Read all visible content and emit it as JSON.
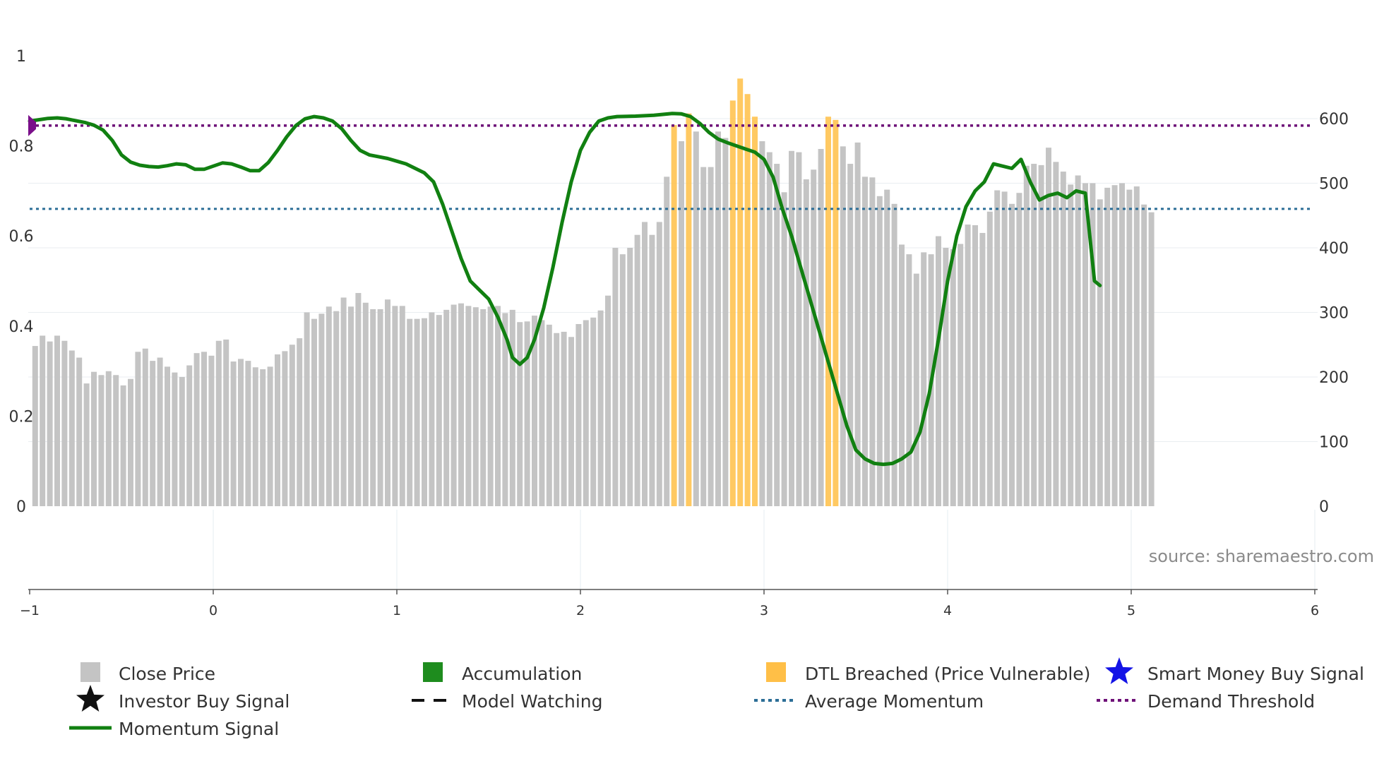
{
  "chart_data": {
    "type": "bar+line",
    "source_text": "source: sharemaestro.com",
    "left_axis": {
      "ylim": [
        0,
        1
      ],
      "ticks": [
        "0",
        "0.2",
        "0.4",
        "0.6",
        "0.8",
        "1"
      ]
    },
    "right_axis": {
      "ylim": [
        0,
        700
      ],
      "ticks": [
        "0",
        "100",
        "200",
        "300",
        "400",
        "500",
        "600"
      ]
    },
    "x_axis": {
      "xlim": [
        -1,
        6
      ],
      "ticks": [
        "−1",
        "0",
        "1",
        "2",
        "3",
        "4",
        "5",
        "6"
      ]
    },
    "reference_lines": {
      "demand_threshold": 0.845,
      "average_momentum": 0.66
    },
    "colors": {
      "close_price": "#c4c4c4",
      "dtl_breached": "#ffbf47",
      "momentum": "#118011",
      "demand_threshold": "#6e1178",
      "average_momentum": "#2c6e97",
      "accumulation": "#1e8c1e",
      "smart_money": "#1414e6",
      "marker": "#7a0f8a"
    },
    "bars": [
      {
        "x": -0.97,
        "v": 248
      },
      {
        "x": -0.93,
        "v": 264
      },
      {
        "x": -0.89,
        "v": 255
      },
      {
        "x": -0.85,
        "v": 264
      },
      {
        "x": -0.81,
        "v": 256
      },
      {
        "x": -0.77,
        "v": 241
      },
      {
        "x": -0.73,
        "v": 230
      },
      {
        "x": -0.69,
        "v": 190
      },
      {
        "x": -0.65,
        "v": 208
      },
      {
        "x": -0.61,
        "v": 203
      },
      {
        "x": -0.57,
        "v": 209
      },
      {
        "x": -0.53,
        "v": 203
      },
      {
        "x": -0.49,
        "v": 187
      },
      {
        "x": -0.45,
        "v": 197
      },
      {
        "x": -0.41,
        "v": 239
      },
      {
        "x": -0.37,
        "v": 244
      },
      {
        "x": -0.33,
        "v": 225
      },
      {
        "x": -0.29,
        "v": 230
      },
      {
        "x": -0.25,
        "v": 216
      },
      {
        "x": -0.21,
        "v": 207
      },
      {
        "x": -0.17,
        "v": 200
      },
      {
        "x": -0.13,
        "v": 218
      },
      {
        "x": -0.09,
        "v": 237
      },
      {
        "x": -0.05,
        "v": 239
      },
      {
        "x": -0.01,
        "v": 233
      },
      {
        "x": 0.03,
        "v": 256
      },
      {
        "x": 0.07,
        "v": 258
      },
      {
        "x": 0.11,
        "v": 224
      },
      {
        "x": 0.15,
        "v": 228
      },
      {
        "x": 0.19,
        "v": 225
      },
      {
        "x": 0.23,
        "v": 215
      },
      {
        "x": 0.27,
        "v": 212
      },
      {
        "x": 0.31,
        "v": 216
      },
      {
        "x": 0.35,
        "v": 235
      },
      {
        "x": 0.39,
        "v": 240
      },
      {
        "x": 0.43,
        "v": 250
      },
      {
        "x": 0.47,
        "v": 260
      },
      {
        "x": 0.51,
        "v": 300
      },
      {
        "x": 0.55,
        "v": 290
      },
      {
        "x": 0.59,
        "v": 298
      },
      {
        "x": 0.63,
        "v": 309
      },
      {
        "x": 0.67,
        "v": 302
      },
      {
        "x": 0.71,
        "v": 323
      },
      {
        "x": 0.75,
        "v": 309
      },
      {
        "x": 0.79,
        "v": 330
      },
      {
        "x": 0.83,
        "v": 315
      },
      {
        "x": 0.87,
        "v": 305
      },
      {
        "x": 0.91,
        "v": 305
      },
      {
        "x": 0.95,
        "v": 320
      },
      {
        "x": 0.99,
        "v": 310
      },
      {
        "x": 1.03,
        "v": 310
      },
      {
        "x": 1.07,
        "v": 290
      },
      {
        "x": 1.11,
        "v": 290
      },
      {
        "x": 1.15,
        "v": 291
      },
      {
        "x": 1.19,
        "v": 300
      },
      {
        "x": 1.23,
        "v": 296
      },
      {
        "x": 1.27,
        "v": 304
      },
      {
        "x": 1.31,
        "v": 312
      },
      {
        "x": 1.35,
        "v": 314
      },
      {
        "x": 1.39,
        "v": 310
      },
      {
        "x": 1.43,
        "v": 308
      },
      {
        "x": 1.47,
        "v": 305
      },
      {
        "x": 1.51,
        "v": 309
      },
      {
        "x": 1.55,
        "v": 310
      },
      {
        "x": 1.59,
        "v": 299
      },
      {
        "x": 1.63,
        "v": 304
      },
      {
        "x": 1.67,
        "v": 285
      },
      {
        "x": 1.71,
        "v": 286
      },
      {
        "x": 1.75,
        "v": 295
      },
      {
        "x": 1.79,
        "v": 288
      },
      {
        "x": 1.83,
        "v": 281
      },
      {
        "x": 1.87,
        "v": 268
      },
      {
        "x": 1.91,
        "v": 270
      },
      {
        "x": 1.95,
        "v": 262
      },
      {
        "x": 1.99,
        "v": 282
      },
      {
        "x": 2.03,
        "v": 288
      },
      {
        "x": 2.07,
        "v": 292
      },
      {
        "x": 2.11,
        "v": 303
      },
      {
        "x": 2.15,
        "v": 326
      },
      {
        "x": 2.19,
        "v": 400
      },
      {
        "x": 2.23,
        "v": 390
      },
      {
        "x": 2.27,
        "v": 400
      },
      {
        "x": 2.31,
        "v": 420
      },
      {
        "x": 2.35,
        "v": 440
      },
      {
        "x": 2.39,
        "v": 420
      },
      {
        "x": 2.43,
        "v": 440
      },
      {
        "x": 2.47,
        "v": 510
      },
      {
        "x": 2.51,
        "v": 590,
        "dtl": true
      },
      {
        "x": 2.55,
        "v": 565
      },
      {
        "x": 2.59,
        "v": 608,
        "dtl": true
      },
      {
        "x": 2.63,
        "v": 580
      },
      {
        "x": 2.67,
        "v": 525
      },
      {
        "x": 2.71,
        "v": 525
      },
      {
        "x": 2.75,
        "v": 580
      },
      {
        "x": 2.79,
        "v": 570
      },
      {
        "x": 2.83,
        "v": 628,
        "dtl": true
      },
      {
        "x": 2.87,
        "v": 662,
        "dtl": true
      },
      {
        "x": 2.91,
        "v": 638,
        "dtl": true
      },
      {
        "x": 2.95,
        "v": 603,
        "dtl": true
      },
      {
        "x": 2.99,
        "v": 565
      },
      {
        "x": 3.03,
        "v": 548
      },
      {
        "x": 3.07,
        "v": 530
      },
      {
        "x": 3.11,
        "v": 486
      },
      {
        "x": 3.15,
        "v": 550
      },
      {
        "x": 3.19,
        "v": 548
      },
      {
        "x": 3.23,
        "v": 506
      },
      {
        "x": 3.27,
        "v": 521
      },
      {
        "x": 3.31,
        "v": 553
      },
      {
        "x": 3.35,
        "v": 603,
        "dtl": true
      },
      {
        "x": 3.39,
        "v": 598,
        "dtl": true
      },
      {
        "x": 3.43,
        "v": 557
      },
      {
        "x": 3.47,
        "v": 530
      },
      {
        "x": 3.51,
        "v": 563
      },
      {
        "x": 3.55,
        "v": 510
      },
      {
        "x": 3.59,
        "v": 509
      },
      {
        "x": 3.63,
        "v": 480
      },
      {
        "x": 3.67,
        "v": 490
      },
      {
        "x": 3.71,
        "v": 468
      },
      {
        "x": 3.75,
        "v": 405
      },
      {
        "x": 3.79,
        "v": 390
      },
      {
        "x": 3.83,
        "v": 360
      },
      {
        "x": 3.87,
        "v": 393
      },
      {
        "x": 3.91,
        "v": 390
      },
      {
        "x": 3.95,
        "v": 418
      },
      {
        "x": 3.99,
        "v": 400
      },
      {
        "x": 4.03,
        "v": 398
      },
      {
        "x": 4.07,
        "v": 406
      },
      {
        "x": 4.11,
        "v": 436
      },
      {
        "x": 4.15,
        "v": 435
      },
      {
        "x": 4.19,
        "v": 423
      },
      {
        "x": 4.23,
        "v": 456
      },
      {
        "x": 4.27,
        "v": 489
      },
      {
        "x": 4.31,
        "v": 487
      },
      {
        "x": 4.35,
        "v": 468
      },
      {
        "x": 4.39,
        "v": 485
      },
      {
        "x": 4.43,
        "v": 527
      },
      {
        "x": 4.47,
        "v": 530
      },
      {
        "x": 4.51,
        "v": 528
      },
      {
        "x": 4.55,
        "v": 555
      },
      {
        "x": 4.59,
        "v": 533
      },
      {
        "x": 4.63,
        "v": 518
      },
      {
        "x": 4.67,
        "v": 498
      },
      {
        "x": 4.71,
        "v": 512
      },
      {
        "x": 4.75,
        "v": 500
      },
      {
        "x": 4.79,
        "v": 500
      },
      {
        "x": 4.83,
        "v": 475
      },
      {
        "x": 4.87,
        "v": 493
      },
      {
        "x": 4.91,
        "v": 497
      },
      {
        "x": 4.95,
        "v": 500
      },
      {
        "x": 4.99,
        "v": 490
      },
      {
        "x": 5.03,
        "v": 495
      },
      {
        "x": 5.07,
        "v": 467
      },
      {
        "x": 5.11,
        "v": 455
      }
    ],
    "momentum": [
      [
        -1.0,
        0.855
      ],
      [
        -0.95,
        0.858
      ],
      [
        -0.9,
        0.861
      ],
      [
        -0.85,
        0.862
      ],
      [
        -0.8,
        0.86
      ],
      [
        -0.75,
        0.856
      ],
      [
        -0.7,
        0.852
      ],
      [
        -0.65,
        0.846
      ],
      [
        -0.6,
        0.835
      ],
      [
        -0.55,
        0.812
      ],
      [
        -0.5,
        0.78
      ],
      [
        -0.45,
        0.764
      ],
      [
        -0.4,
        0.757
      ],
      [
        -0.35,
        0.754
      ],
      [
        -0.3,
        0.753
      ],
      [
        -0.25,
        0.756
      ],
      [
        -0.2,
        0.76
      ],
      [
        -0.15,
        0.758
      ],
      [
        -0.1,
        0.748
      ],
      [
        -0.05,
        0.748
      ],
      [
        0.0,
        0.755
      ],
      [
        0.05,
        0.762
      ],
      [
        0.1,
        0.76
      ],
      [
        0.15,
        0.753
      ],
      [
        0.2,
        0.745
      ],
      [
        0.25,
        0.745
      ],
      [
        0.3,
        0.763
      ],
      [
        0.35,
        0.79
      ],
      [
        0.4,
        0.82
      ],
      [
        0.45,
        0.845
      ],
      [
        0.5,
        0.86
      ],
      [
        0.55,
        0.865
      ],
      [
        0.6,
        0.862
      ],
      [
        0.65,
        0.855
      ],
      [
        0.7,
        0.838
      ],
      [
        0.75,
        0.812
      ],
      [
        0.8,
        0.79
      ],
      [
        0.85,
        0.78
      ],
      [
        0.9,
        0.776
      ],
      [
        0.95,
        0.772
      ],
      [
        1.0,
        0.766
      ],
      [
        1.05,
        0.76
      ],
      [
        1.1,
        0.75
      ],
      [
        1.15,
        0.74
      ],
      [
        1.2,
        0.72
      ],
      [
        1.25,
        0.67
      ],
      [
        1.3,
        0.61
      ],
      [
        1.35,
        0.55
      ],
      [
        1.4,
        0.5
      ],
      [
        1.45,
        0.48
      ],
      [
        1.5,
        0.46
      ],
      [
        1.55,
        0.42
      ],
      [
        1.6,
        0.37
      ],
      [
        1.63,
        0.33
      ],
      [
        1.67,
        0.315
      ],
      [
        1.71,
        0.33
      ],
      [
        1.75,
        0.37
      ],
      [
        1.8,
        0.44
      ],
      [
        1.85,
        0.53
      ],
      [
        1.9,
        0.63
      ],
      [
        1.95,
        0.72
      ],
      [
        2.0,
        0.79
      ],
      [
        2.05,
        0.83
      ],
      [
        2.1,
        0.855
      ],
      [
        2.15,
        0.862
      ],
      [
        2.2,
        0.865
      ],
      [
        2.3,
        0.866
      ],
      [
        2.4,
        0.868
      ],
      [
        2.5,
        0.872
      ],
      [
        2.55,
        0.871
      ],
      [
        2.6,
        0.865
      ],
      [
        2.65,
        0.85
      ],
      [
        2.7,
        0.83
      ],
      [
        2.75,
        0.815
      ],
      [
        2.8,
        0.807
      ],
      [
        2.85,
        0.8
      ],
      [
        2.9,
        0.793
      ],
      [
        2.95,
        0.786
      ],
      [
        3.0,
        0.77
      ],
      [
        3.05,
        0.73
      ],
      [
        3.1,
        0.66
      ],
      [
        3.15,
        0.6
      ],
      [
        3.2,
        0.53
      ],
      [
        3.25,
        0.46
      ],
      [
        3.3,
        0.39
      ],
      [
        3.35,
        0.32
      ],
      [
        3.4,
        0.25
      ],
      [
        3.45,
        0.18
      ],
      [
        3.5,
        0.125
      ],
      [
        3.55,
        0.105
      ],
      [
        3.6,
        0.095
      ],
      [
        3.65,
        0.093
      ],
      [
        3.7,
        0.095
      ],
      [
        3.75,
        0.105
      ],
      [
        3.8,
        0.12
      ],
      [
        3.85,
        0.165
      ],
      [
        3.9,
        0.25
      ],
      [
        3.95,
        0.37
      ],
      [
        4.0,
        0.5
      ],
      [
        4.05,
        0.6
      ],
      [
        4.1,
        0.665
      ],
      [
        4.15,
        0.7
      ],
      [
        4.2,
        0.72
      ],
      [
        4.25,
        0.76
      ],
      [
        4.3,
        0.755
      ],
      [
        4.35,
        0.75
      ],
      [
        4.4,
        0.77
      ],
      [
        4.45,
        0.72
      ],
      [
        4.5,
        0.68
      ],
      [
        4.55,
        0.69
      ],
      [
        4.6,
        0.695
      ],
      [
        4.65,
        0.685
      ],
      [
        4.7,
        0.7
      ],
      [
        4.75,
        0.695
      ],
      [
        4.8,
        0.5
      ],
      [
        4.83,
        0.49
      ]
    ],
    "start_marker": {
      "x": -1.0,
      "y": 0.845
    },
    "legend": [
      {
        "key": "close",
        "label": "Close Price"
      },
      {
        "key": "accum",
        "label": "Accumulation"
      },
      {
        "key": "dtl",
        "label": "DTL Breached (Price Vulnerable)"
      },
      {
        "key": "smart",
        "label": "Smart Money Buy Signal"
      },
      {
        "key": "investor",
        "label": "Investor Buy Signal"
      },
      {
        "key": "watching",
        "label": "Model Watching"
      },
      {
        "key": "avgmom",
        "label": "Average Momentum"
      },
      {
        "key": "demand",
        "label": "Demand Threshold"
      },
      {
        "key": "momentum",
        "label": "Momentum Signal"
      }
    ]
  }
}
